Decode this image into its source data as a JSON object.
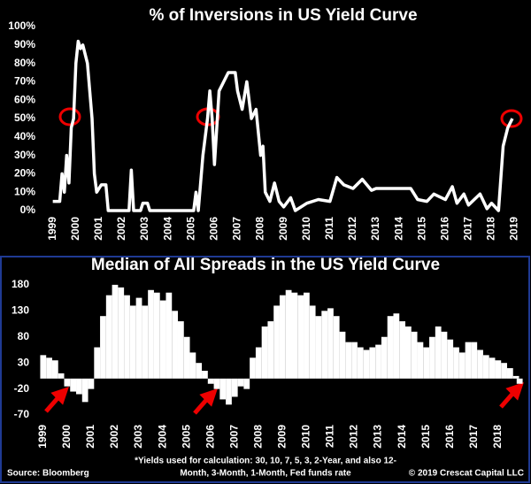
{
  "chart_data": [
    {
      "type": "line",
      "title": "% of Inversions in US Yield Curve",
      "color": "#ffffff",
      "x": [
        1999.0,
        1999.3,
        1999.4,
        1999.5,
        1999.6,
        1999.7,
        1999.8,
        1999.9,
        2000.0,
        2000.1,
        2000.2,
        2000.3,
        2000.5,
        2000.7,
        2000.8,
        2000.9,
        2001.1,
        2001.3,
        2001.4,
        2002.0,
        2002.3,
        2002.4,
        2002.5,
        2002.8,
        2002.9,
        2003.1,
        2003.2,
        2005.1,
        2005.2,
        2005.3,
        2005.5,
        2005.7,
        2005.8,
        2005.9,
        2006.0,
        2006.1,
        2006.2,
        2006.4,
        2006.6,
        2006.9,
        2007.0,
        2007.2,
        2007.4,
        2007.6,
        2007.8,
        2008.0,
        2008.1,
        2008.2,
        2008.4,
        2008.6,
        2008.8,
        2009.0,
        2009.3,
        2009.5,
        2010.0,
        2010.5,
        2011.0,
        2011.3,
        2011.6,
        2012.0,
        2012.4,
        2012.8,
        2013.0,
        2013.5,
        2014.0,
        2014.5,
        2014.8,
        2015.2,
        2015.5,
        2016.0,
        2016.3,
        2016.5,
        2016.8,
        2017.0,
        2017.5,
        2017.8,
        2018.0,
        2018.3,
        2018.5,
        2018.7,
        2018.9
      ],
      "values": [
        5,
        5,
        20,
        10,
        30,
        15,
        45,
        50,
        80,
        92,
        88,
        90,
        80,
        50,
        20,
        10,
        14,
        14,
        0,
        0,
        0,
        22,
        0,
        0,
        4,
        4,
        0,
        0,
        10,
        0,
        30,
        50,
        65,
        50,
        25,
        45,
        65,
        70,
        75,
        75,
        65,
        55,
        70,
        50,
        55,
        30,
        35,
        10,
        5,
        15,
        5,
        2,
        7,
        0,
        4,
        6,
        5,
        18,
        14,
        12,
        17,
        11,
        12,
        12,
        12,
        12,
        6,
        5,
        9,
        6,
        13,
        4,
        9,
        3,
        9,
        1,
        4,
        0,
        35,
        45,
        50
      ],
      "xlim": [
        1998.4,
        2019.4
      ],
      "xticks": [
        1999,
        2000,
        2001,
        2002,
        2003,
        2004,
        2005,
        2006,
        2007,
        2008,
        2009,
        2010,
        2011,
        2012,
        2013,
        2014,
        2015,
        2016,
        2017,
        2018,
        2019
      ],
      "ylim": [
        0,
        100
      ],
      "yticks": [
        {
          "value": 0,
          "label": "0%"
        },
        {
          "value": 10,
          "label": "10%"
        },
        {
          "value": 20,
          "label": "20%"
        },
        {
          "value": 30,
          "label": "30%"
        },
        {
          "value": 40,
          "label": "40%"
        },
        {
          "value": 50,
          "label": "50%"
        },
        {
          "value": 60,
          "label": "60%"
        },
        {
          "value": 70,
          "label": "70%"
        },
        {
          "value": 80,
          "label": "80%"
        },
        {
          "value": 90,
          "label": "90%"
        },
        {
          "value": 100,
          "label": "100%"
        }
      ]
    },
    {
      "type": "bar",
      "title": "Median of All Spreads in the US Yield Curve",
      "color": "#ffffff",
      "x": [
        1999.0,
        1999.25,
        1999.5,
        1999.75,
        2000.0,
        2000.25,
        2000.5,
        2000.75,
        2001.0,
        2001.25,
        2001.5,
        2001.75,
        2002.0,
        2002.25,
        2002.5,
        2002.75,
        2003.0,
        2003.25,
        2003.5,
        2003.75,
        2004.0,
        2004.25,
        2004.5,
        2004.75,
        2005.0,
        2005.25,
        2005.5,
        2005.75,
        2006.0,
        2006.25,
        2006.5,
        2006.75,
        2007.0,
        2007.25,
        2007.5,
        2007.75,
        2008.0,
        2008.25,
        2008.5,
        2008.75,
        2009.0,
        2009.25,
        2009.5,
        2009.75,
        2010.0,
        2010.25,
        2010.5,
        2010.75,
        2011.0,
        2011.25,
        2011.5,
        2011.75,
        2012.0,
        2012.25,
        2012.5,
        2012.75,
        2013.0,
        2013.25,
        2013.5,
        2013.75,
        2014.0,
        2014.25,
        2014.5,
        2014.75,
        2015.0,
        2015.25,
        2015.5,
        2015.75,
        2016.0,
        2016.25,
        2016.5,
        2016.75,
        2017.0,
        2017.25,
        2017.5,
        2017.75,
        2018.0,
        2018.25,
        2018.5,
        2018.75,
        2018.9
      ],
      "values": [
        45,
        40,
        35,
        10,
        -15,
        -25,
        -30,
        -45,
        -20,
        60,
        120,
        160,
        180,
        175,
        160,
        140,
        155,
        140,
        170,
        165,
        150,
        165,
        130,
        110,
        80,
        50,
        30,
        15,
        -10,
        -20,
        -40,
        -50,
        -35,
        -15,
        -20,
        40,
        60,
        100,
        110,
        140,
        160,
        170,
        165,
        160,
        165,
        140,
        120,
        130,
        135,
        120,
        90,
        70,
        70,
        60,
        55,
        60,
        65,
        80,
        120,
        125,
        110,
        100,
        90,
        70,
        60,
        80,
        100,
        90,
        75,
        60,
        50,
        70,
        70,
        55,
        45,
        40,
        35,
        30,
        20,
        5,
        -10
      ],
      "xlim": [
        1998.6,
        2019.3
      ],
      "xticks": [
        1999,
        2000,
        2001,
        2002,
        2003,
        2004,
        2005,
        2006,
        2007,
        2008,
        2009,
        2010,
        2011,
        2012,
        2013,
        2014,
        2015,
        2016,
        2017,
        2018
      ],
      "ylim": [
        -75,
        190
      ],
      "yticks": [
        -70,
        -20,
        30,
        80,
        130,
        180
      ],
      "source": "Source: Bloomberg",
      "note": [
        "*Yields used for calculation: 30, 10, 7, 5, 3, 2-Year, and also 12-",
        "Month, 3-Month, 1-Month, Fed funds rate"
      ],
      "credit": "© 2019 Crescat Capital LLC"
    }
  ]
}
